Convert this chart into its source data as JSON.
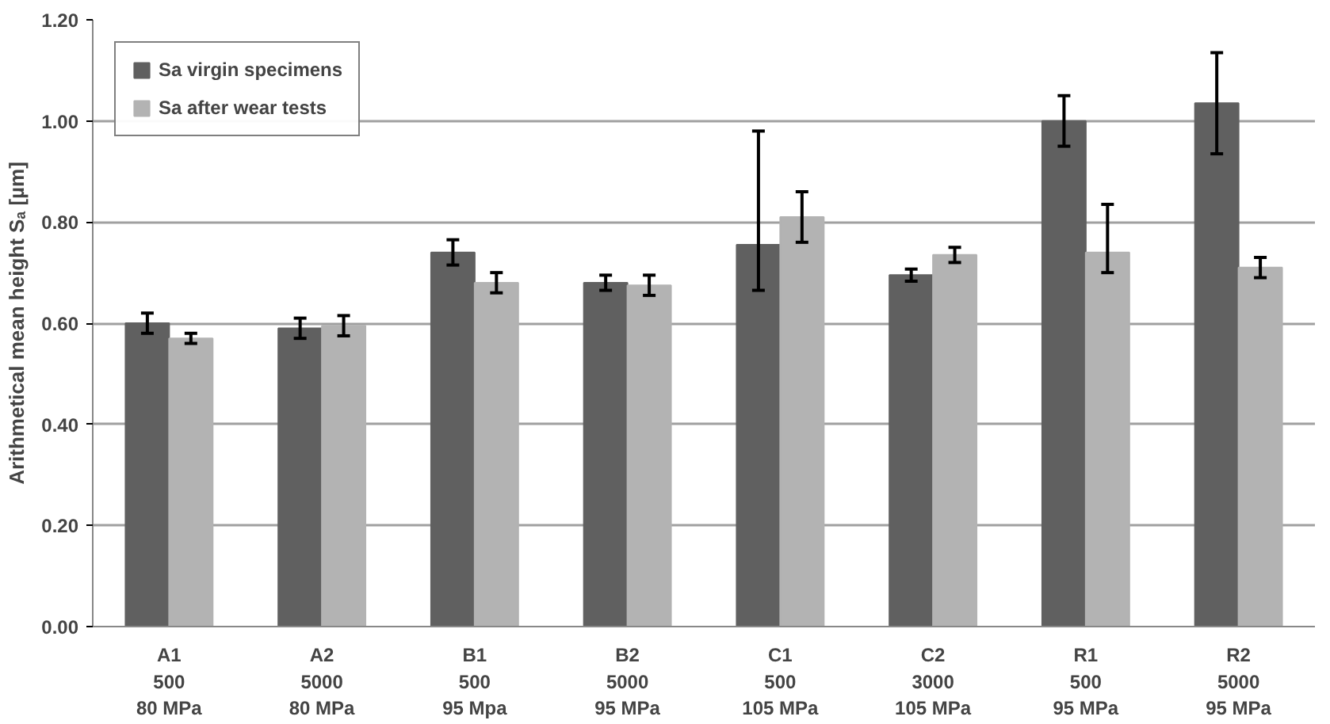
{
  "chart_data": {
    "type": "bar",
    "ylabel": "Arithmetical mean height Sₐ [µm]",
    "categories": [
      "A1\n500\n80 MPa",
      "A2\n5000\n80 MPa",
      "B1\n500\n95 Mpa",
      "B2\n5000\n95 MPa",
      "C1\n500\n105 MPa",
      "C2\n3000\n105 MPa",
      "R1\n500\n95 MPa",
      "R2\n5000\n95 MPa"
    ],
    "series": [
      {
        "name": "Sa virgin specimens",
        "color": "#606060",
        "values": [
          0.6,
          0.59,
          0.74,
          0.68,
          0.755,
          0.695,
          1.0,
          1.035
        ],
        "errors": [
          0.02,
          0.02,
          0.025,
          0.015,
          [
            0.665,
            0.98
          ],
          0.012,
          0.05,
          0.1
        ]
      },
      {
        "name": "Sa after wear tests",
        "color": "#b3b3b3",
        "values": [
          0.57,
          0.595,
          0.68,
          0.675,
          0.81,
          0.735,
          0.74,
          0.71
        ],
        "errors": [
          0.01,
          0.02,
          0.02,
          0.02,
          0.05,
          0.015,
          [
            0.7,
            0.835
          ],
          0.02
        ]
      }
    ],
    "ylim": [
      0,
      1.2
    ],
    "yticks": [
      {
        "value": 0,
        "label": "0.00"
      },
      {
        "value": 0.2,
        "label": "0.20"
      },
      {
        "value": 0.4,
        "label": "0.40"
      },
      {
        "value": 0.6,
        "label": "0.60"
      },
      {
        "value": 0.8,
        "label": "0.80"
      },
      {
        "value": 1.0,
        "label": "1.00"
      },
      {
        "value": 1.2,
        "label": "1.20"
      }
    ],
    "grid": "y",
    "legend": "top left"
  }
}
